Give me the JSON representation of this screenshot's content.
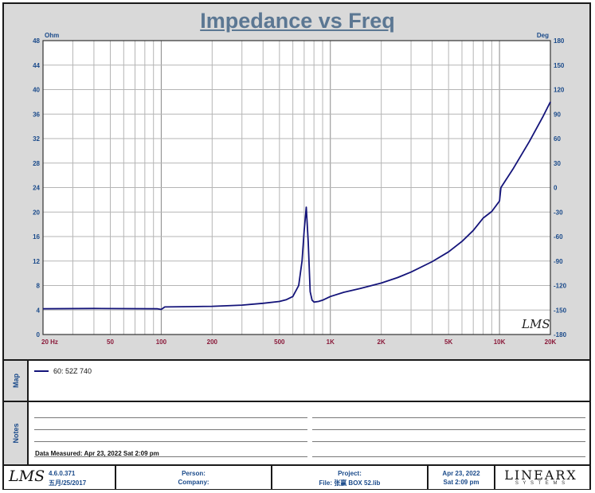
{
  "chart_data": {
    "type": "line",
    "title": "Impedance vs Freq",
    "y_left_unit": "Ohm",
    "y_right_unit": "Deg",
    "xscale": "log",
    "xlim": [
      20,
      20000
    ],
    "ylim": [
      0,
      48
    ],
    "y_right_lim": [
      -180,
      180
    ],
    "x_ticks": [
      {
        "value": 20,
        "label": "20  Hz"
      },
      {
        "value": 50,
        "label": "50"
      },
      {
        "value": 100,
        "label": "100"
      },
      {
        "value": 200,
        "label": "200"
      },
      {
        "value": 500,
        "label": "500"
      },
      {
        "value": 1000,
        "label": "1K"
      },
      {
        "value": 2000,
        "label": "2K"
      },
      {
        "value": 5000,
        "label": "5K"
      },
      {
        "value": 10000,
        "label": "10K"
      },
      {
        "value": 20000,
        "label": "20K"
      }
    ],
    "y_ticks": [
      0,
      4,
      8,
      12,
      16,
      20,
      24,
      28,
      32,
      36,
      40,
      44,
      48
    ],
    "y_right_ticks": [
      -180,
      -150,
      -120,
      -90,
      -60,
      -30,
      0,
      30,
      60,
      90,
      120,
      150,
      180
    ],
    "grid": true,
    "series": [
      {
        "name": "60: 52Z   740",
        "color": "#14147a",
        "x": [
          20,
          40,
          95,
          100,
          105,
          150,
          200,
          300,
          400,
          500,
          550,
          600,
          650,
          680,
          700,
          720,
          740,
          760,
          780,
          800,
          850,
          900,
          950,
          1000,
          1200,
          1500,
          2000,
          2500,
          3000,
          4000,
          5000,
          6000,
          7000,
          8000,
          9000,
          10000,
          10200,
          12000,
          15000,
          18000,
          20000
        ],
        "y": [
          4.2,
          4.25,
          4.2,
          4.1,
          4.5,
          4.55,
          4.6,
          4.8,
          5.1,
          5.4,
          5.7,
          6.2,
          8.0,
          12.0,
          17.0,
          20.8,
          15.0,
          7.0,
          5.6,
          5.3,
          5.4,
          5.6,
          5.9,
          6.2,
          6.9,
          7.5,
          8.4,
          9.3,
          10.2,
          11.9,
          13.5,
          15.2,
          17.0,
          19.0,
          20.1,
          21.8,
          24.0,
          27.0,
          31.5,
          35.5,
          38.0
        ]
      }
    ]
  },
  "watermark": "LMS",
  "panels": {
    "map_label": "Map",
    "notes_label": "Notes",
    "data_measured": "Data Measured: Apr 23, 2022  Sat  2:09 pm"
  },
  "footer": {
    "version": "4.6.0.371",
    "version_date": "五月/25/2017",
    "person_label": "Person:",
    "company_label": "Company:",
    "project_label": "Project:",
    "file_label": "File: 张赢 BOX 52.lib",
    "date": "Apr 23, 2022",
    "time": "Sat  2:09 pm",
    "brand": "LINEARX",
    "brand_sub": "S Y S T E M S"
  }
}
